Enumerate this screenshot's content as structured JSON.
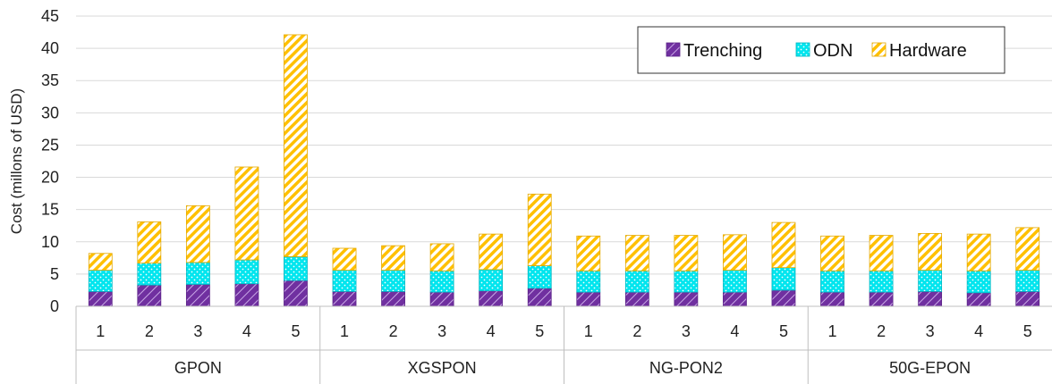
{
  "chart_data": {
    "type": "bar",
    "stacked": true,
    "ylabel": "Cost (millons of USD)",
    "ylim": [
      0,
      45
    ],
    "yticks": [
      0,
      5,
      10,
      15,
      20,
      25,
      30,
      35,
      40,
      45
    ],
    "grid": true,
    "legend_position": "top-right",
    "groups": [
      {
        "name": "GPON",
        "categories": [
          "1",
          "2",
          "3",
          "4",
          "5"
        ]
      },
      {
        "name": "XGSPON",
        "categories": [
          "1",
          "2",
          "3",
          "4",
          "5"
        ]
      },
      {
        "name": "NG-PON2",
        "categories": [
          "1",
          "2",
          "3",
          "4",
          "5"
        ]
      },
      {
        "name": "50G-EPON",
        "categories": [
          "1",
          "2",
          "3",
          "4",
          "5"
        ]
      }
    ],
    "series": [
      {
        "name": "Trenching",
        "color": "#7030a0",
        "values": [
          2.3,
          3.3,
          3.4,
          3.5,
          4.0,
          2.3,
          2.3,
          2.2,
          2.4,
          2.8,
          2.2,
          2.2,
          2.2,
          2.2,
          2.5,
          2.2,
          2.2,
          2.3,
          2.1,
          2.3
        ]
      },
      {
        "name": "ODN",
        "color": "#00e5ee",
        "values": [
          3.3,
          3.4,
          3.4,
          3.7,
          3.7,
          3.3,
          3.3,
          3.3,
          3.3,
          3.5,
          3.3,
          3.3,
          3.3,
          3.4,
          3.5,
          3.3,
          3.3,
          3.3,
          3.4,
          3.3
        ]
      },
      {
        "name": "Hardware",
        "color": "#ffc000",
        "values": [
          2.6,
          6.4,
          8.8,
          14.4,
          34.4,
          3.4,
          3.8,
          4.2,
          5.5,
          11.1,
          5.4,
          5.5,
          5.5,
          5.5,
          7.0,
          5.4,
          5.5,
          5.7,
          5.7,
          6.6
        ]
      }
    ]
  }
}
